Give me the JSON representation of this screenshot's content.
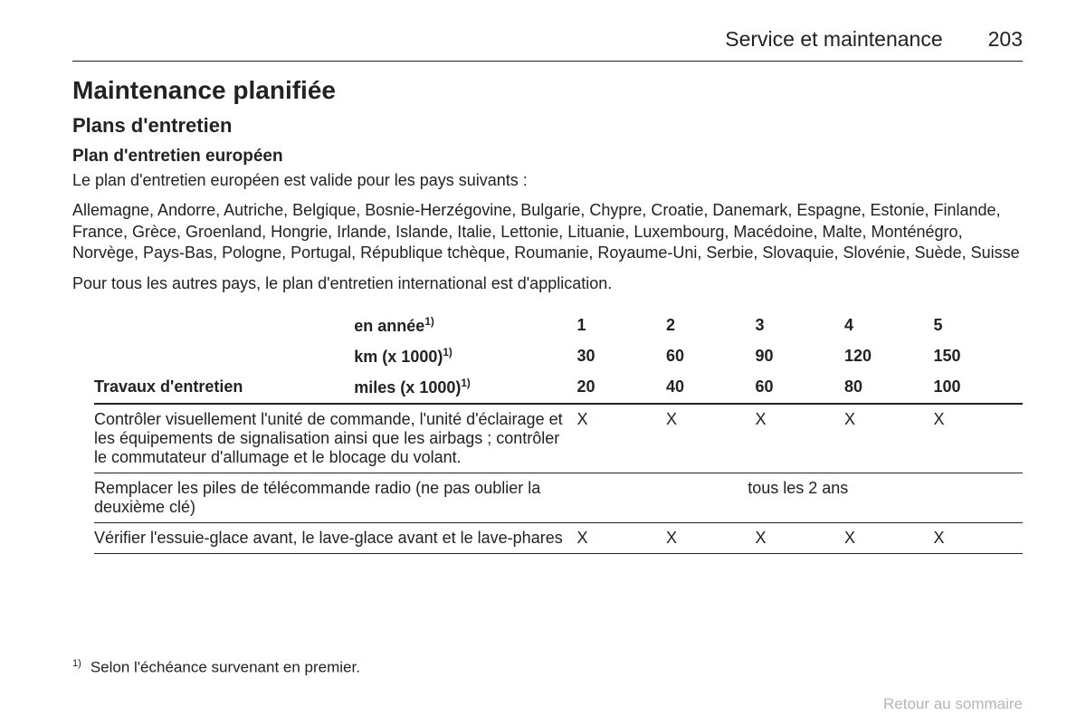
{
  "header": {
    "section_title": "Service et maintenance",
    "page_number": "203"
  },
  "titles": {
    "h1": "Maintenance planifiée",
    "h2": "Plans d'entretien",
    "h3": "Plan d'entretien européen"
  },
  "intro": {
    "p1": "Le plan d'entretien européen est valide pour les pays suivants :",
    "p2": "Allemagne, Andorre, Autriche, Belgique, Bosnie-Herzégovine, Bulgarie, Chypre, Croatie, Danemark, Espagne, Estonie, Finlande, France, Grèce, Groenland, Hongrie, Irlande, Islande, Italie, Lettonie, Lituanie, Luxembourg, Macédoine, Malte, Monténégro, Norvège, Pays-Bas, Pologne, Portugal, République tchèque, Roumanie, Royaume-Uni, Serbie, Slovaquie, Slovénie, Suède, Suisse",
    "p3": "Pour tous les autres pays, le plan d'entretien international est d'application."
  },
  "table": {
    "col_widths": [
      "28%",
      "24%",
      "9.6%",
      "9.6%",
      "9.6%",
      "9.6%",
      "9.6%"
    ],
    "header_labels": {
      "year": "en année",
      "km": "km (x 1000)",
      "miles": "miles (x 1000)",
      "left_bottom": "Travaux d'entretien",
      "sup": "1)"
    },
    "header_values": {
      "year": [
        "1",
        "2",
        "3",
        "4",
        "5"
      ],
      "km": [
        "30",
        "60",
        "90",
        "120",
        "150"
      ],
      "miles": [
        "20",
        "40",
        "60",
        "80",
        "100"
      ]
    },
    "rows": [
      {
        "label": "Contrôler visuellement l'unité de commande, l'unité d'éclairage et les équipements de signalisation ainsi que les airbags ; contrôler le commutateur d'allumage et le blocage du volant.",
        "cells": [
          "X",
          "X",
          "X",
          "X",
          "X"
        ]
      },
      {
        "label": "Remplacer les piles de télécommande radio (ne pas oublier la deuxième clé)",
        "span_text": "tous les 2 ans"
      },
      {
        "label": "Vérifier l'essuie-glace avant, le lave-glace avant et le lave-phares",
        "cells": [
          "X",
          "X",
          "X",
          "X",
          "X"
        ]
      }
    ]
  },
  "footnote": {
    "sup": "1)",
    "text": "Selon l'échéance survenant en premier."
  },
  "return_link": "Retour au sommaire",
  "styling": {
    "text_color": "#222222",
    "border_color": "#222222",
    "muted_color": "#b5b5b5",
    "background": "#ffffff",
    "body_font_size": 18,
    "h1_font_size": 28,
    "h2_font_size": 22,
    "h3_font_size": 19,
    "header_font_size": 23
  }
}
